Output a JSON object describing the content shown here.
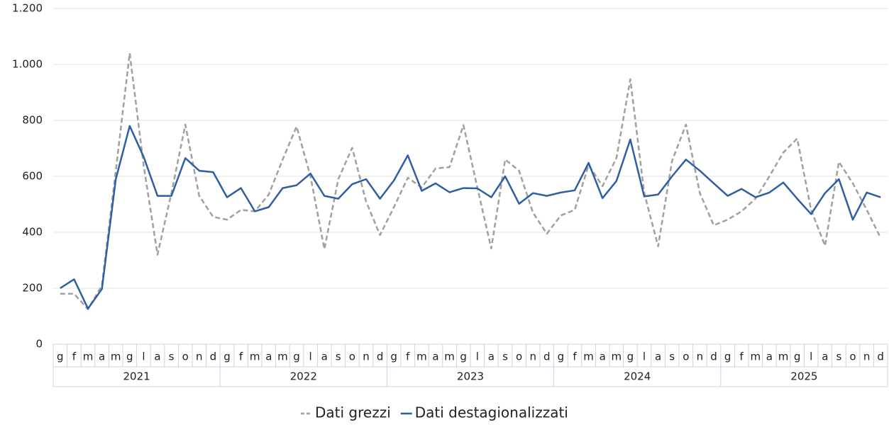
{
  "chart_data": {
    "type": "line",
    "categories": [
      "g",
      "f",
      "m",
      "a",
      "m",
      "g",
      "l",
      "a",
      "s",
      "o",
      "n",
      "d",
      "g",
      "f",
      "m",
      "a",
      "m",
      "g",
      "l",
      "a",
      "s",
      "o",
      "n",
      "d",
      "g",
      "f",
      "m",
      "a",
      "m",
      "g",
      "l",
      "a",
      "s",
      "o",
      "n",
      "d",
      "g",
      "f",
      "m",
      "a",
      "m",
      "g",
      "l",
      "a",
      "s",
      "o",
      "n",
      "d",
      "g",
      "f",
      "m",
      "a",
      "m",
      "g",
      "l",
      "a",
      "s",
      "o",
      "n",
      "d"
    ],
    "x_groups": [
      "2021",
      "2022",
      "2023",
      "2024",
      "2025"
    ],
    "series": [
      {
        "name": "Dati grezzi",
        "color": "#a0a0a0",
        "dashed": true,
        "values": [
          180,
          180,
          125,
          210,
          620,
          1040,
          640,
          320,
          540,
          785,
          530,
          455,
          445,
          480,
          475,
          535,
          660,
          778,
          600,
          340,
          590,
          702,
          510,
          390,
          490,
          595,
          560,
          628,
          633,
          783,
          560,
          342,
          660,
          620,
          470,
          395,
          460,
          480,
          640,
          565,
          665,
          947,
          540,
          350,
          655,
          785,
          540,
          425,
          445,
          475,
          520,
          600,
          685,
          735,
          480,
          352,
          652,
          575,
          480,
          380
        ]
      },
      {
        "name": "Dati destagionalizzati",
        "color": "#2e5fa3",
        "dashed": false,
        "values": [
          200,
          232,
          127,
          197,
          590,
          780,
          670,
          530,
          530,
          665,
          620,
          615,
          525,
          558,
          475,
          490,
          558,
          568,
          610,
          530,
          520,
          572,
          590,
          520,
          585,
          675,
          548,
          575,
          543,
          558,
          557,
          525,
          600,
          502,
          540,
          530,
          542,
          550,
          648,
          522,
          583,
          732,
          528,
          535,
          600,
          660,
          620,
          575,
          530,
          555,
          525,
          542,
          578,
          520,
          465,
          540,
          590,
          445,
          542,
          525
        ]
      }
    ],
    "ylim": [
      0,
      1200
    ],
    "yticks": [
      0,
      200,
      400,
      600,
      800,
      {
        "value": 1000,
        "label": "1.000"
      },
      {
        "value": 1200,
        "label": "1.200"
      }
    ],
    "grid": true,
    "legend": "bottom"
  }
}
